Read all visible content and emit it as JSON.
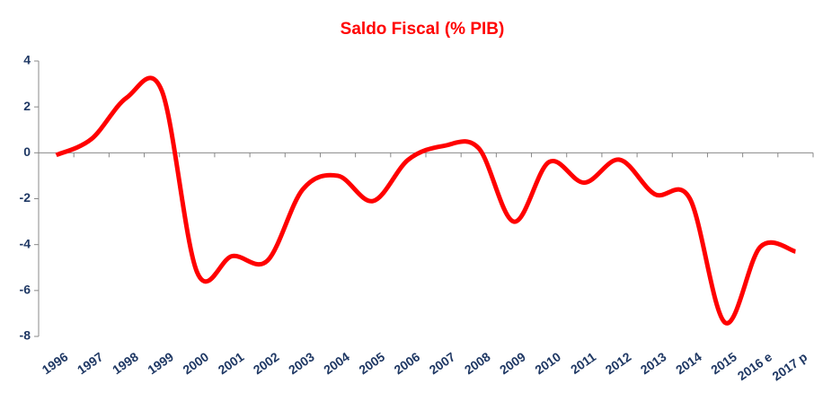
{
  "chart_data": {
    "type": "line",
    "title": "Saldo Fiscal (% PIB)",
    "categories": [
      "1996",
      "1997",
      "1998",
      "1999",
      "2000",
      "2001",
      "2002",
      "2003",
      "2004",
      "2005",
      "2006",
      "2007",
      "2008",
      "2009",
      "2010",
      "2011",
      "2012",
      "2013",
      "2014",
      "2015",
      "2016 e",
      "2017 p"
    ],
    "series": [
      {
        "name": "Saldo Fiscal",
        "color": "#ff0000",
        "values": [
          -0.1,
          0.6,
          2.4,
          2.7,
          -5.2,
          -4.5,
          -4.7,
          -1.6,
          -1.0,
          -2.1,
          -0.3,
          0.3,
          0.2,
          -3.0,
          -0.4,
          -1.3,
          -0.3,
          -1.8,
          -2.0,
          -7.4,
          -4.1,
          -4.3
        ]
      }
    ],
    "ylim": [
      -8,
      4
    ],
    "yticks": [
      -8,
      -6,
      -4,
      -2,
      0,
      2,
      4
    ],
    "grid": false
  }
}
